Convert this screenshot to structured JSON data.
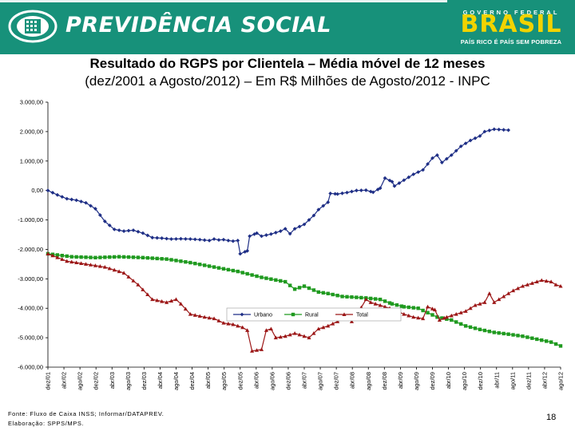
{
  "header": {
    "brand": "PREVIDÊNCIA SOCIAL",
    "gov_top": "GOVERNO FEDERAL",
    "gov_name": "BRASIL",
    "gov_slogan": "PAÍS RICO É PAÍS SEM POBREZA",
    "colors": {
      "header_bg": "#17917a",
      "gov_yellow": "#f2d300"
    }
  },
  "title": {
    "line1": "Resultado do RGPS por Clientela – Média móvel de 12 meses",
    "line2": "(dez/2001 a Agosto/2012) – Em R$ Milhões de Agosto/2012 - INPC"
  },
  "chart_data": {
    "type": "line",
    "y_ticks": [
      "3.000,00",
      "2.000,00",
      "1.000,00",
      "0,00",
      "-1.000,00",
      "-2.000,00",
      "-3.000,00",
      "-4.000,00",
      "-5.000,00",
      "-6.000,00"
    ],
    "ylim": [
      -6000,
      3000
    ],
    "x_ticks": [
      "dez/01",
      "abr/02",
      "ago/02",
      "dez/02",
      "abr/03",
      "ago/03",
      "dez/03",
      "abr/04",
      "ago/04",
      "dez/04",
      "abr/05",
      "ago/05",
      "dez/05",
      "abr/06",
      "ago/06",
      "dez/06",
      "abr/07",
      "ago/07",
      "dez/07",
      "abr/08",
      "ago/08",
      "dez/08",
      "abr/09",
      "ago/09",
      "dez/09",
      "abr/10",
      "ago/10",
      "dez/10",
      "abr/11",
      "ago/11",
      "dez/11",
      "abr/12",
      "ago/12"
    ],
    "legend_position": "bottom",
    "grid": false,
    "series": [
      {
        "name": "Urbano",
        "color": "#1f2f86",
        "marker": "diamond",
        "anchors": [
          [
            0,
            0
          ],
          [
            4,
            -150
          ],
          [
            8,
            -280
          ],
          [
            12,
            -330
          ],
          [
            16,
            -420
          ],
          [
            20,
            -620
          ],
          [
            24,
            -1050
          ],
          [
            28,
            -1320
          ],
          [
            32,
            -1380
          ],
          [
            36,
            -1350
          ],
          [
            40,
            -1450
          ],
          [
            44,
            -1600
          ],
          [
            48,
            -1620
          ],
          [
            52,
            -1650
          ],
          [
            56,
            -1640
          ],
          [
            60,
            -1650
          ],
          [
            64,
            -1670
          ],
          [
            68,
            -1700
          ],
          [
            70,
            -1650
          ],
          [
            72,
            -1680
          ],
          [
            74,
            -1670
          ],
          [
            76,
            -1700
          ],
          [
            78,
            -1720
          ],
          [
            80,
            -1700
          ],
          [
            81,
            -2150
          ],
          [
            84,
            -2050
          ],
          [
            85,
            -1550
          ],
          [
            88,
            -1450
          ],
          [
            90,
            -1550
          ],
          [
            94,
            -1480
          ],
          [
            98,
            -1380
          ],
          [
            100,
            -1300
          ],
          [
            102,
            -1470
          ],
          [
            104,
            -1300
          ],
          [
            108,
            -1150
          ],
          [
            112,
            -850
          ],
          [
            114,
            -650
          ],
          [
            116,
            -520
          ],
          [
            118,
            -400
          ],
          [
            119,
            -100
          ],
          [
            122,
            -120
          ],
          [
            126,
            -70
          ],
          [
            130,
            0
          ],
          [
            134,
            10
          ],
          [
            137,
            -60
          ],
          [
            140,
            80
          ],
          [
            142,
            420
          ],
          [
            145,
            300
          ],
          [
            146,
            150
          ],
          [
            150,
            350
          ],
          [
            154,
            550
          ],
          [
            158,
            700
          ],
          [
            162,
            1100
          ],
          [
            164,
            1200
          ],
          [
            166,
            950
          ],
          [
            170,
            1200
          ],
          [
            174,
            1500
          ],
          [
            178,
            1700
          ],
          [
            182,
            1850
          ],
          [
            184,
            2000
          ],
          [
            188,
            2080
          ],
          [
            192,
            2060
          ],
          [
            194,
            2050
          ]
        ]
      },
      {
        "name": "Rural",
        "color": "#1f9a1f",
        "marker": "square",
        "anchors": [
          [
            0,
            -2150
          ],
          [
            10,
            -2250
          ],
          [
            20,
            -2280
          ],
          [
            30,
            -2250
          ],
          [
            40,
            -2280
          ],
          [
            50,
            -2330
          ],
          [
            60,
            -2450
          ],
          [
            70,
            -2600
          ],
          [
            80,
            -2750
          ],
          [
            90,
            -2950
          ],
          [
            100,
            -3100
          ],
          [
            104,
            -3350
          ],
          [
            108,
            -3250
          ],
          [
            114,
            -3450
          ],
          [
            118,
            -3500
          ],
          [
            124,
            -3600
          ],
          [
            134,
            -3650
          ],
          [
            140,
            -3700
          ],
          [
            145,
            -3850
          ],
          [
            150,
            -3950
          ],
          [
            156,
            -4000
          ],
          [
            164,
            -4300
          ],
          [
            170,
            -4400
          ],
          [
            176,
            -4600
          ],
          [
            182,
            -4720
          ],
          [
            188,
            -4820
          ],
          [
            194,
            -4880
          ],
          [
            200,
            -4950
          ],
          [
            206,
            -5050
          ],
          [
            212,
            -5150
          ],
          [
            216,
            -5280
          ]
        ]
      },
      {
        "name": "Total",
        "color": "#9c1717",
        "marker": "triangle",
        "anchors": [
          [
            0,
            -2150
          ],
          [
            8,
            -2400
          ],
          [
            16,
            -2500
          ],
          [
            24,
            -2600
          ],
          [
            28,
            -2700
          ],
          [
            32,
            -2800
          ],
          [
            38,
            -3200
          ],
          [
            44,
            -3700
          ],
          [
            50,
            -3800
          ],
          [
            54,
            -3700
          ],
          [
            56,
            -3850
          ],
          [
            60,
            -4200
          ],
          [
            66,
            -4300
          ],
          [
            70,
            -4350
          ],
          [
            74,
            -4500
          ],
          [
            78,
            -4550
          ],
          [
            82,
            -4650
          ],
          [
            84,
            -4750
          ],
          [
            86,
            -5450
          ],
          [
            90,
            -5400
          ],
          [
            92,
            -4750
          ],
          [
            94,
            -4700
          ],
          [
            96,
            -5000
          ],
          [
            100,
            -4950
          ],
          [
            104,
            -4850
          ],
          [
            108,
            -4950
          ],
          [
            110,
            -5000
          ],
          [
            114,
            -4700
          ],
          [
            118,
            -4600
          ],
          [
            122,
            -4450
          ],
          [
            126,
            -4300
          ],
          [
            128,
            -4450
          ],
          [
            130,
            -4250
          ],
          [
            134,
            -3700
          ],
          [
            136,
            -3800
          ],
          [
            140,
            -3900
          ],
          [
            144,
            -4000
          ],
          [
            150,
            -4200
          ],
          [
            154,
            -4300
          ],
          [
            158,
            -4350
          ],
          [
            160,
            -3950
          ],
          [
            163,
            -4050
          ],
          [
            165,
            -4400
          ],
          [
            168,
            -4300
          ],
          [
            172,
            -4200
          ],
          [
            176,
            -4100
          ],
          [
            180,
            -3900
          ],
          [
            184,
            -3800
          ],
          [
            186,
            -3500
          ],
          [
            188,
            -3800
          ],
          [
            192,
            -3600
          ],
          [
            196,
            -3400
          ],
          [
            200,
            -3250
          ],
          [
            204,
            -3150
          ],
          [
            208,
            -3050
          ],
          [
            212,
            -3100
          ],
          [
            214,
            -3200
          ],
          [
            216,
            -3250
          ]
        ]
      }
    ]
  },
  "footer": {
    "source": "Fonte: Fluxo de Caixa INSS; Informar/DATAPREV.",
    "elaboration": "Elaboração: SPPS/MPS."
  },
  "page_number": "18"
}
